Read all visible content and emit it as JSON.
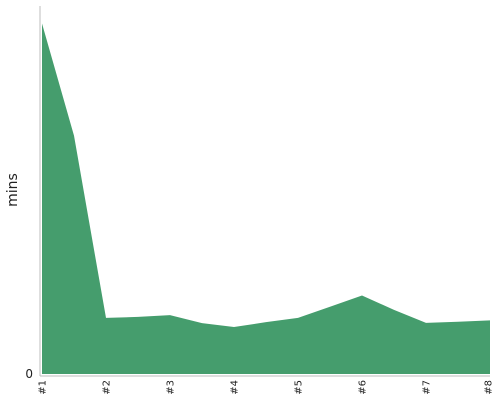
{
  "chart_data": {
    "type": "area",
    "title": "",
    "xlabel": "",
    "ylabel": "mins",
    "categories": [
      "#1",
      "#2",
      "#3",
      "#4",
      "#5",
      "#6",
      "#7",
      "#8"
    ],
    "x": [
      1,
      1.5,
      2,
      2.5,
      3,
      3.5,
      4,
      4.5,
      5,
      5.5,
      6,
      6.5,
      7,
      7.5,
      8
    ],
    "values": [
      100,
      68,
      16,
      16.3,
      16.8,
      14.5,
      13.4,
      14.8,
      16,
      19.2,
      22.4,
      18.3,
      14.6,
      14.9,
      15.3
    ],
    "y_ticks": [
      0
    ],
    "ylim": [
      0,
      101
    ],
    "grid": false,
    "color": "#459d6d"
  }
}
